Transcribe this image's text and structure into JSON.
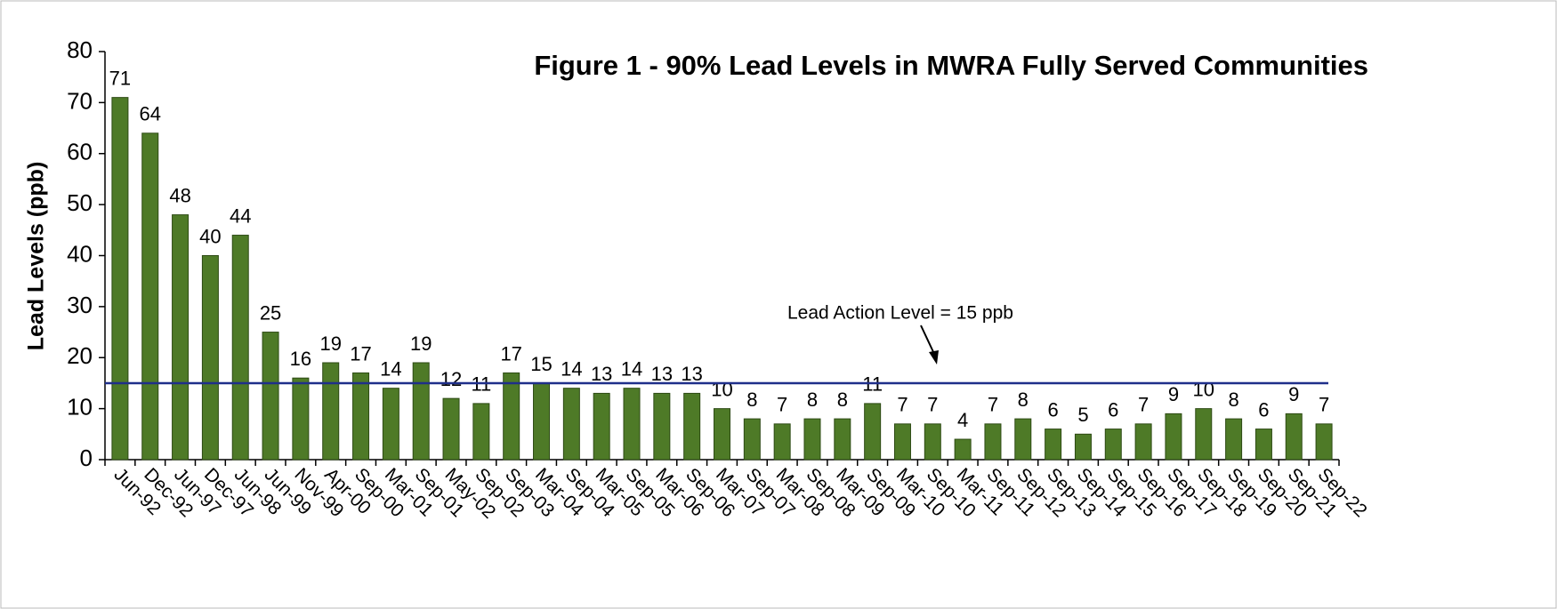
{
  "chart_data": {
    "type": "bar",
    "title": "Figure 1 - 90%  Lead Levels in MWRA Fully Served Communities",
    "y_label": "Lead Levels (ppb)",
    "categories": [
      "Jun-92",
      "Dec-92",
      "Jun-97",
      "Dec-97",
      "Jun-98",
      "Jun-99",
      "Nov-99",
      "Apr-00",
      "Sep-00",
      "Mar-01",
      "Sep-01",
      "May-02",
      "Sep-02",
      "Sep-03",
      "Mar-04",
      "Sep-04",
      "Mar-05",
      "Sep-05",
      "Mar-06",
      "Sep-06",
      "Mar-07",
      "Sep-07",
      "Mar-08",
      "Sep-08",
      "Mar-09",
      "Sep-09",
      "Mar-10",
      "Sep-10",
      "Mar-11",
      "Sep-11",
      "Sep-12",
      "Sep-13",
      "Sep-14",
      "Sep-15",
      "Sep-16",
      "Sep-17",
      "Sep-18",
      "Sep-19",
      "Sep-20",
      "Sep-21",
      "Sep-22"
    ],
    "values": [
      71,
      64,
      48,
      40,
      44,
      25,
      16,
      19,
      17,
      14,
      19,
      12,
      11,
      17,
      15,
      14,
      13,
      14,
      13,
      13,
      10,
      8,
      7,
      8,
      8,
      11,
      7,
      7,
      4,
      7,
      8,
      6,
      5,
      6,
      7,
      9,
      10,
      8,
      6,
      9,
      7
    ],
    "color": "#4e7a27",
    "ylim": [
      0,
      80
    ],
    "yticks": [
      0,
      10,
      20,
      30,
      40,
      50,
      60,
      70,
      80
    ],
    "reference_line": {
      "value": 15,
      "label": "Lead Action Level = 15 ppb",
      "color": "#1f2f8a"
    }
  }
}
